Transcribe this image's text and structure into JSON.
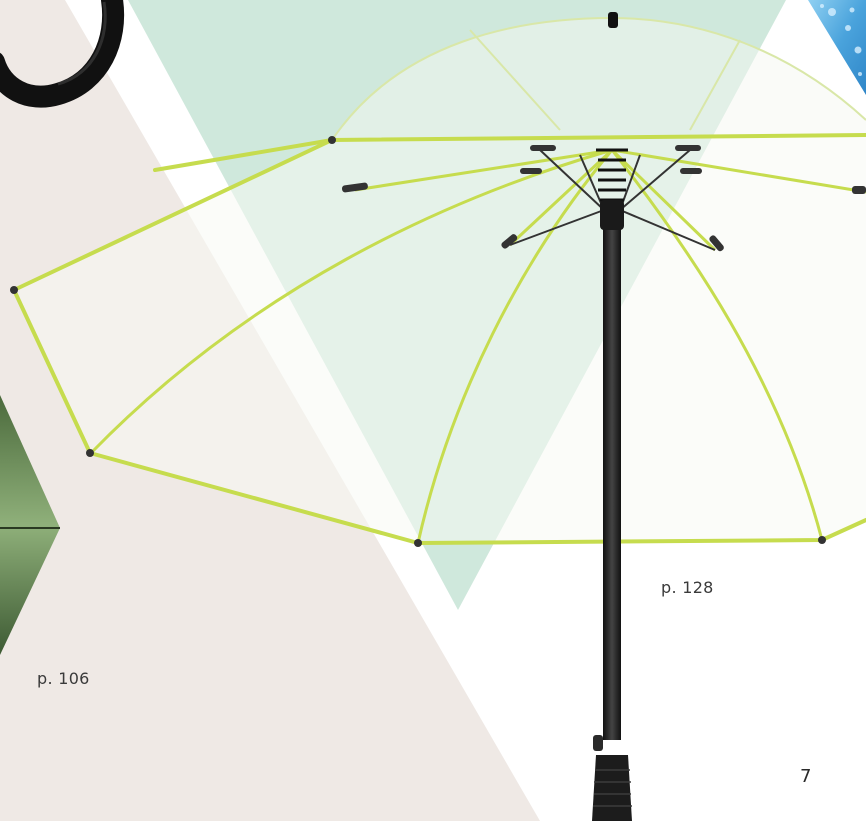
{
  "page_refs": {
    "left_product": "p. 106",
    "right_product": "p. 128"
  },
  "page_number": "7",
  "colors": {
    "beige_panel": "#efe9e5",
    "mint_panel": "#cfe8dc",
    "water_blue": "#5aaee0",
    "lime_trim": "#c6dc4e",
    "shaft_black": "#222222",
    "canopy_tint": "#f7f9f4"
  },
  "icons": [
    "hook-handle",
    "transparent-umbrella",
    "tree-print-umbrella",
    "water-drops"
  ]
}
